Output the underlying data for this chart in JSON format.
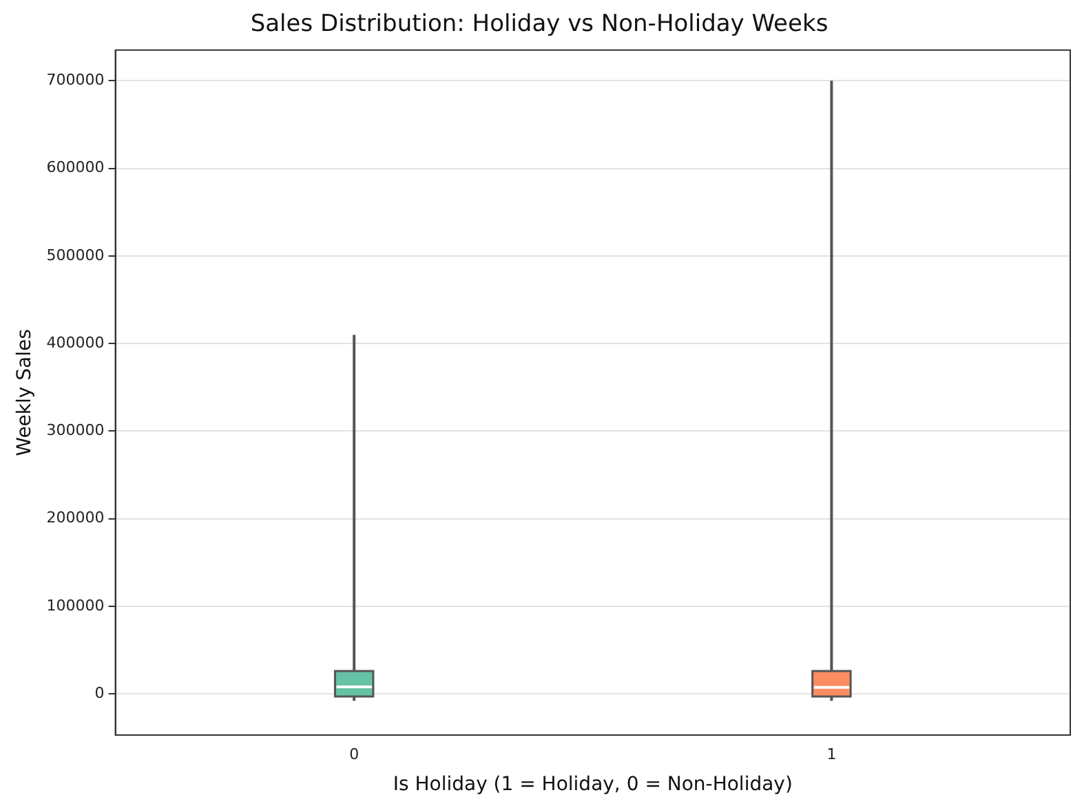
{
  "chart_data": {
    "type": "box",
    "title": "Sales Distribution: Holiday vs Non-Holiday Weeks",
    "xlabel": "Is Holiday (1 = Holiday, 0 = Non-Holiday)",
    "ylabel": "Weekly Sales",
    "categories": [
      "0",
      "1"
    ],
    "colors": [
      "#66c2a5",
      "#fc8d62"
    ],
    "boxes": [
      {
        "low": -8000,
        "q1": -3000,
        "median": 8000,
        "q3": 26000,
        "high": 410000
      },
      {
        "low": -8000,
        "q1": -3000,
        "median": 7500,
        "q3": 26000,
        "high": 700000
      }
    ],
    "ylim": [
      -47000,
      735000
    ],
    "yticks": [
      0,
      100000,
      200000,
      300000,
      400000,
      500000,
      600000,
      700000
    ],
    "grid": "y",
    "legend": false
  }
}
